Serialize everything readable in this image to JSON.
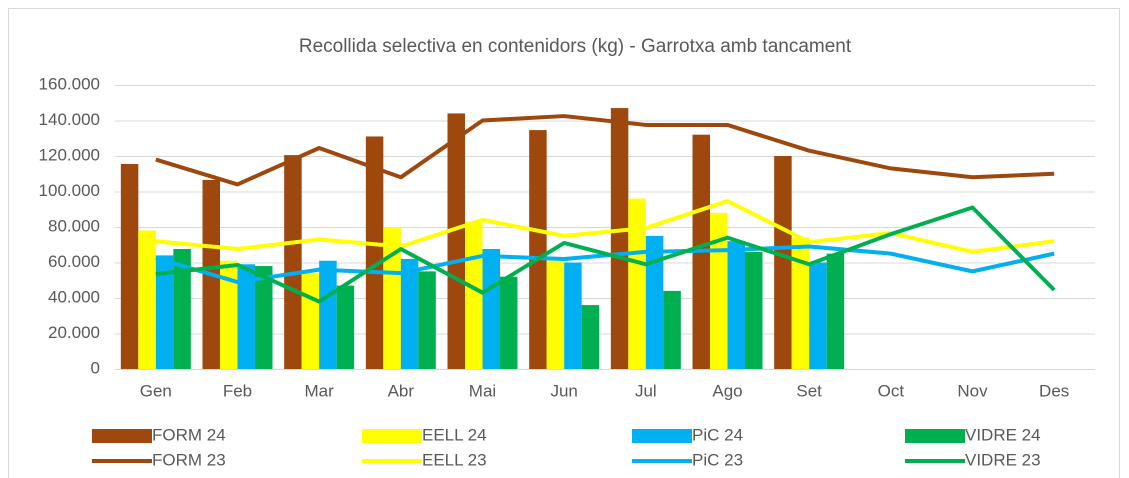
{
  "chart_data": {
    "type": "combo",
    "title": "Recollida selectiva en contenidors (kg) - Garrotxa amb tancament",
    "categories": [
      "Gen",
      "Feb",
      "Mar",
      "Abr",
      "Mai",
      "Jun",
      "Jul",
      "Ago",
      "Set",
      "Oct",
      "Nov",
      "Des"
    ],
    "ylim": [
      0,
      160000
    ],
    "yticks": [
      0,
      {
        "value": 20000,
        "label": "20.000"
      },
      {
        "value": 40000,
        "label": "40.000"
      },
      {
        "value": 60000,
        "label": "60.000"
      },
      {
        "value": 80000,
        "label": "80.000"
      },
      {
        "value": 100000,
        "label": "100.000"
      },
      {
        "value": 120000,
        "label": "120.000"
      },
      {
        "value": 140000,
        "label": "140.000"
      },
      {
        "value": 160000,
        "label": "160.000"
      }
    ],
    "grid": true,
    "legend": "bottom",
    "series": [
      {
        "name": "FORM 24",
        "type": "bar",
        "color": "#9e480e",
        "values": [
          115500,
          106500,
          120500,
          131000,
          144000,
          134600,
          147000,
          132000,
          120000,
          null,
          null,
          null
        ]
      },
      {
        "name": "EELL 24",
        "type": "bar",
        "color": "#ffff00",
        "values": [
          78000,
          61000,
          54000,
          80000,
          83000,
          61000,
          96000,
          88000,
          74000,
          null,
          null,
          null
        ]
      },
      {
        "name": "PiC 24",
        "type": "bar",
        "color": "#00b0f0",
        "values": [
          64000,
          59000,
          61000,
          62000,
          67600,
          60000,
          75000,
          72000,
          60000,
          null,
          null,
          null
        ]
      },
      {
        "name": "VIDRE 24",
        "type": "bar",
        "color": "#00b050",
        "values": [
          67600,
          58000,
          47000,
          55000,
          52000,
          36000,
          44000,
          66000,
          65000,
          null,
          null,
          null
        ]
      },
      {
        "name": "FORM 23",
        "type": "line",
        "color": "#9e480e",
        "values": [
          118000,
          104000,
          124500,
          108000,
          140000,
          142500,
          137500,
          137500,
          123000,
          113000,
          108000,
          110000
        ]
      },
      {
        "name": "EELL 23",
        "type": "line",
        "color": "#ffff00",
        "values": [
          72000,
          67600,
          73000,
          69000,
          84000,
          75000,
          79400,
          94600,
          71500,
          76600,
          66000,
          72000
        ]
      },
      {
        "name": "PiC 23",
        "type": "line",
        "color": "#00b0f0",
        "values": [
          62500,
          49000,
          56000,
          54000,
          63700,
          62000,
          66000,
          67000,
          69000,
          65000,
          55000,
          65000
        ]
      },
      {
        "name": "VIDRE 23",
        "type": "line",
        "color": "#00b050",
        "values": [
          53500,
          58600,
          38000,
          67600,
          43000,
          71000,
          59000,
          74000,
          59000,
          76000,
          91000,
          44500
        ]
      }
    ]
  }
}
